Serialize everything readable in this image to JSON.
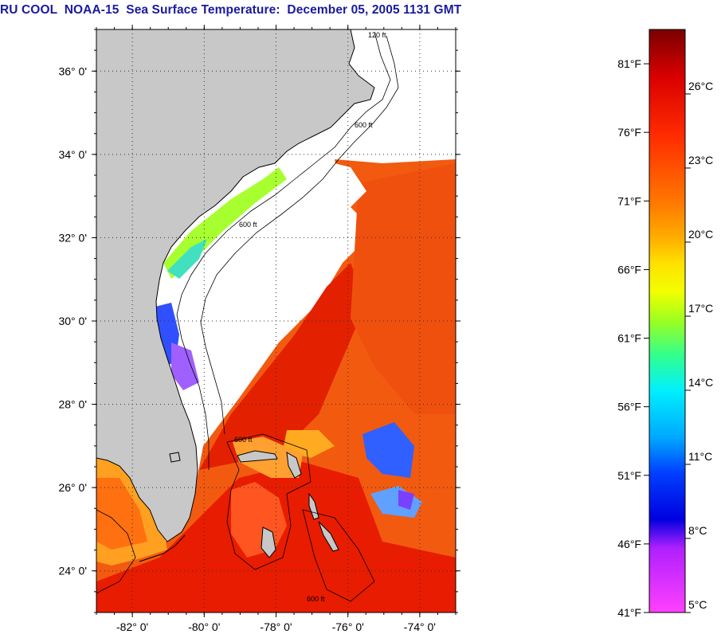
{
  "title": "RU COOL  NOAA-15  Sea Surface Temperature:  December 05, 2005 1131 GMT",
  "map": {
    "lon_range": [
      -83,
      -73
    ],
    "lat_range": [
      23,
      37
    ],
    "lat_ticks": [
      {
        "value": 36,
        "label": "36° 0'"
      },
      {
        "value": 34,
        "label": "34° 0'"
      },
      {
        "value": 32,
        "label": "32° 0'"
      },
      {
        "value": 30,
        "label": "30° 0'"
      },
      {
        "value": 28,
        "label": "28° 0'"
      },
      {
        "value": 26,
        "label": "26° 0'"
      },
      {
        "value": 24,
        "label": "24° 0'"
      }
    ],
    "lon_ticks": [
      {
        "value": -82,
        "label": "-82° 0'"
      },
      {
        "value": -80,
        "label": "-80° 0'"
      },
      {
        "value": -78,
        "label": "-78° 0'"
      },
      {
        "value": -76,
        "label": "-76° 0'"
      },
      {
        "value": -74,
        "label": "-74° 0'"
      }
    ],
    "contour_labels": [
      "120 ft",
      "600 ft",
      "600 ft",
      "600 ft",
      "600 ft"
    ],
    "colors": {
      "land": "#c8c8c8",
      "cloud": "#ffffff",
      "warm": "#ee2200",
      "cool": "#ffd000"
    }
  },
  "colorbar": {
    "f_labels": [
      "81°F",
      "76°F",
      "71°F",
      "66°F",
      "61°F",
      "56°F",
      "51°F",
      "46°F",
      "41°F"
    ],
    "c_labels": [
      "26°C",
      "23°C",
      "20°C",
      "17°C",
      "14°C",
      "11°C",
      "8°C",
      "5°C"
    ],
    "stops": [
      "#7a0000",
      "#d80000",
      "#ff2a00",
      "#ff7a00",
      "#ffb000",
      "#ffe000",
      "#f2ff00",
      "#9cff20",
      "#30ff90",
      "#00f0ff",
      "#00a8ff",
      "#0040ff",
      "#0000e0",
      "#b020ff",
      "#ff40ff"
    ]
  }
}
